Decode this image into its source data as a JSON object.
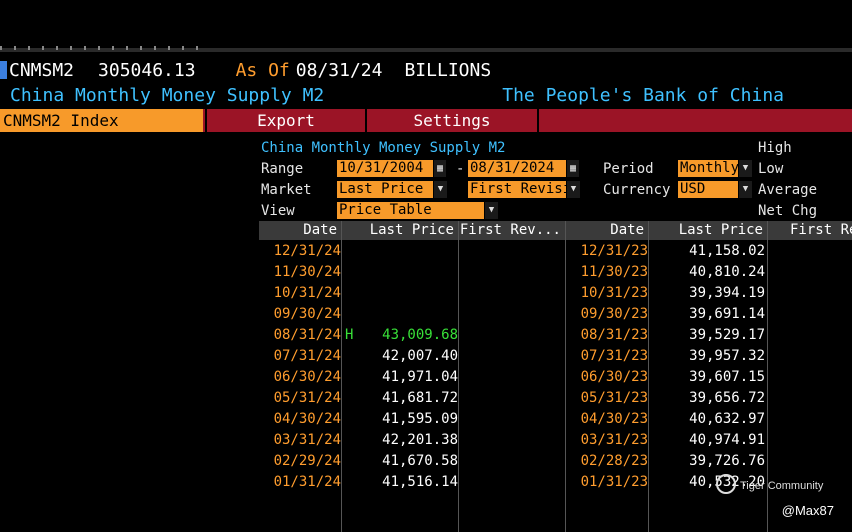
{
  "header": {
    "ticker": "CNMSM2",
    "price": "305046.13",
    "as_of_label": "As Of",
    "as_of_date": "08/31/24",
    "units": "BILLIONS",
    "description": "China Monthly Money Supply M2",
    "source": "The People's Bank of China"
  },
  "menu": {
    "index_label": "CNMSM2 Index",
    "export_label": "Export",
    "settings_label": "Settings"
  },
  "form": {
    "title": "China Monthly Money Supply M2",
    "range_label": "Range",
    "range_start": "10/31/2004",
    "range_dash": "-",
    "range_end": "08/31/2024",
    "period_label": "Period",
    "period_value": "Monthly",
    "market_label": "Market",
    "market_value": "Last Price",
    "revision_value": "First Revision",
    "currency_label": "Currency",
    "currency_value": "USD",
    "view_label": "View",
    "view_value": "Price Table",
    "stats": [
      "High",
      "Low",
      "Average",
      "Net Chg"
    ]
  },
  "table": {
    "headers": [
      "Date",
      "Last Price",
      "First Rev...",
      "Date",
      "Last Price",
      "First Rev"
    ],
    "left": [
      {
        "date": "12/31/24",
        "price": "",
        "mark": ""
      },
      {
        "date": "11/30/24",
        "price": "",
        "mark": ""
      },
      {
        "date": "10/31/24",
        "price": "",
        "mark": ""
      },
      {
        "date": "09/30/24",
        "price": "",
        "mark": ""
      },
      {
        "date": "08/31/24",
        "price": "43,009.68",
        "mark": "H"
      },
      {
        "date": "07/31/24",
        "price": "42,007.40",
        "mark": ""
      },
      {
        "date": "06/30/24",
        "price": "41,971.04",
        "mark": ""
      },
      {
        "date": "05/31/24",
        "price": "41,681.72",
        "mark": ""
      },
      {
        "date": "04/30/24",
        "price": "41,595.09",
        "mark": ""
      },
      {
        "date": "03/31/24",
        "price": "42,201.38",
        "mark": ""
      },
      {
        "date": "02/29/24",
        "price": "41,670.58",
        "mark": ""
      },
      {
        "date": "01/31/24",
        "price": "41,516.14",
        "mark": ""
      }
    ],
    "right": [
      {
        "date": "12/31/23",
        "price": "41,158.02"
      },
      {
        "date": "11/30/23",
        "price": "40,810.24"
      },
      {
        "date": "10/31/23",
        "price": "39,394.19"
      },
      {
        "date": "09/30/23",
        "price": "39,691.14"
      },
      {
        "date": "08/31/23",
        "price": "39,529.17"
      },
      {
        "date": "07/31/23",
        "price": "39,957.32"
      },
      {
        "date": "06/30/23",
        "price": "39,607.15"
      },
      {
        "date": "05/31/23",
        "price": "39,656.72"
      },
      {
        "date": "04/30/23",
        "price": "40,632.97"
      },
      {
        "date": "03/31/23",
        "price": "40,974.91"
      },
      {
        "date": "02/28/23",
        "price": "39,726.76"
      },
      {
        "date": "01/31/23",
        "price": "40,532.20"
      }
    ]
  },
  "watermark": {
    "community": "Tiger Community",
    "handle": "@Max87"
  },
  "colors": {
    "accent_orange": "#f79a2a",
    "menu_red": "#9b1426",
    "label_orange": "#ff9d2e",
    "title_cyan": "#3fc1ff",
    "high_green": "#38e038"
  }
}
